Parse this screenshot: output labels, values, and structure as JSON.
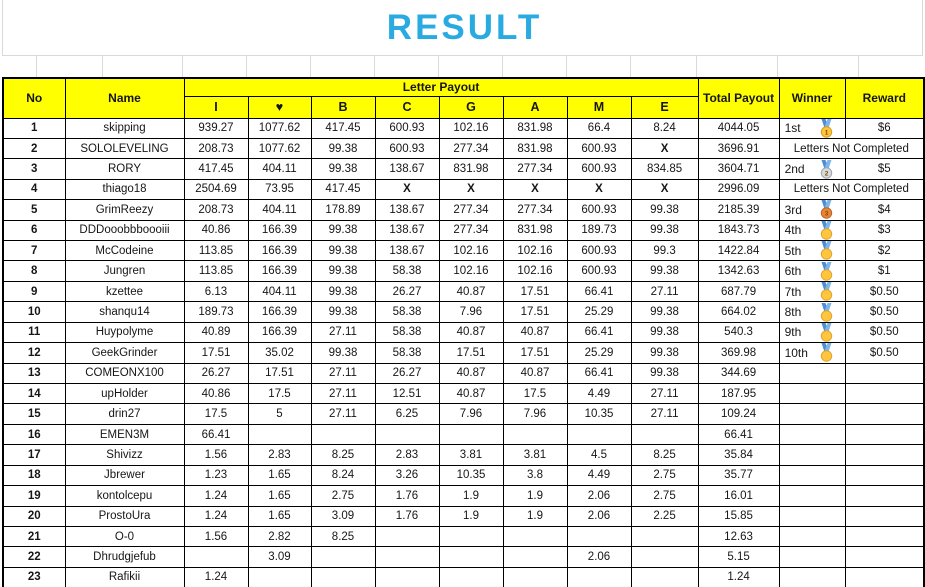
{
  "title": "RESULT",
  "colors": {
    "title_blue": "#29ABE2",
    "header_yellow": "#FFFF00",
    "alert_red": "#FF0000",
    "ribbon_blue": "#4E8FD4",
    "medal_gold": "#FFC53D",
    "medal_silver": "#D6DADE",
    "medal_bronze": "#E8833A"
  },
  "table": {
    "headers": {
      "no": "No",
      "name": "Name",
      "letter_payout": "Letter Payout",
      "total_payout": "Total Payout",
      "winner": "Winner",
      "reward": "Reward"
    },
    "letter_columns": [
      "I",
      "♥",
      "B",
      "C",
      "G",
      "A",
      "M",
      "E"
    ],
    "not_completed_text": "Letters Not Completed",
    "rows": [
      {
        "no": "1",
        "name": "skipping",
        "letters": [
          "939.27",
          "1077.62",
          "417.45",
          "600.93",
          "102.16",
          "831.98",
          "66.4",
          "8.24"
        ],
        "total": "4044.05",
        "winner": {
          "rank": "1st",
          "medal": "gold"
        },
        "reward": "$6"
      },
      {
        "no": "2",
        "name": "SOLOLEVELING",
        "letters": [
          "208.73",
          "1077.62",
          "99.38",
          "600.93",
          "277.34",
          "831.98",
          "600.93",
          "X"
        ],
        "total": "3696.91",
        "status": "not_completed"
      },
      {
        "no": "3",
        "name": "RORY",
        "letters": [
          "417.45",
          "404.11",
          "99.38",
          "138.67",
          "831.98",
          "277.34",
          "600.93",
          "834.85"
        ],
        "total": "3604.71",
        "winner": {
          "rank": "2nd",
          "medal": "silver"
        },
        "reward": "$5"
      },
      {
        "no": "4",
        "name": "thiago18",
        "letters": [
          "2504.69",
          "73.95",
          "417.45",
          "X",
          "X",
          "X",
          "X",
          "X"
        ],
        "total": "2996.09",
        "status": "not_completed"
      },
      {
        "no": "5",
        "name": "GrimReezy",
        "letters": [
          "208.73",
          "404.11",
          "178.89",
          "138.67",
          "277.34",
          "277.34",
          "600.93",
          "99.38"
        ],
        "total": "2185.39",
        "winner": {
          "rank": "3rd",
          "medal": "bronze"
        },
        "reward": "$4"
      },
      {
        "no": "6",
        "name": "DDDooobbboooiii",
        "letters": [
          "40.86",
          "166.39",
          "99.38",
          "138.67",
          "277.34",
          "831.98",
          "189.73",
          "99.38"
        ],
        "total": "1843.73",
        "winner": {
          "rank": "4th",
          "medal": "sport"
        },
        "reward": "$3"
      },
      {
        "no": "7",
        "name": "McCodeine",
        "letters": [
          "113.85",
          "166.39",
          "99.38",
          "138.67",
          "102.16",
          "102.16",
          "600.93",
          "99.3"
        ],
        "total": "1422.84",
        "winner": {
          "rank": "5th",
          "medal": "sport"
        },
        "reward": "$2"
      },
      {
        "no": "8",
        "name": "Jungren",
        "letters": [
          "113.85",
          "166.39",
          "99.38",
          "58.38",
          "102.16",
          "102.16",
          "600.93",
          "99.38"
        ],
        "total": "1342.63",
        "winner": {
          "rank": "6th",
          "medal": "sport"
        },
        "reward": "$1"
      },
      {
        "no": "9",
        "name": "kzettee",
        "letters": [
          "6.13",
          "404.11",
          "99.38",
          "26.27",
          "40.87",
          "17.51",
          "66.41",
          "27.11"
        ],
        "total": "687.79",
        "winner": {
          "rank": "7th",
          "medal": "sport"
        },
        "reward": "$0.50"
      },
      {
        "no": "10",
        "name": "shanqu14",
        "letters": [
          "189.73",
          "166.39",
          "99.38",
          "58.38",
          "7.96",
          "17.51",
          "25.29",
          "99.38"
        ],
        "total": "664.02",
        "winner": {
          "rank": "8th",
          "medal": "sport"
        },
        "reward": "$0.50"
      },
      {
        "no": "11",
        "name": "Huypolyme",
        "letters": [
          "40.89",
          "166.39",
          "27.11",
          "58.38",
          "40.87",
          "40.87",
          "66.41",
          "99.38"
        ],
        "total": "540.3",
        "winner": {
          "rank": "9th",
          "medal": "sport"
        },
        "reward": "$0.50"
      },
      {
        "no": "12",
        "name": "GeekGrinder",
        "letters": [
          "17.51",
          "35.02",
          "99.38",
          "58.38",
          "17.51",
          "17.51",
          "25.29",
          "99.38"
        ],
        "total": "369.98",
        "winner": {
          "rank": "10th",
          "medal": "sport"
        },
        "reward": "$0.50"
      },
      {
        "no": "13",
        "name": "COMEONX100",
        "letters": [
          "26.27",
          "17.51",
          "27.11",
          "26.27",
          "40.87",
          "40.87",
          "66.41",
          "99.38"
        ],
        "total": "344.69"
      },
      {
        "no": "14",
        "name": "upHolder",
        "letters": [
          "40.86",
          "17.5",
          "27.11",
          "12.51",
          "40.87",
          "17.5",
          "4.49",
          "27.11"
        ],
        "total": "187.95"
      },
      {
        "no": "15",
        "name": "drin27",
        "letters": [
          "17.5",
          "5",
          "27.11",
          "6.25",
          "7.96",
          "7.96",
          "10.35",
          "27.11"
        ],
        "total": "109.24"
      },
      {
        "no": "16",
        "name": "EMEN3M",
        "letters": [
          "66.41",
          "",
          "",
          "",
          "",
          "",
          "",
          ""
        ],
        "total": "66.41"
      },
      {
        "no": "17",
        "name": "Shivizz",
        "letters": [
          "1.56",
          "2.83",
          "8.25",
          "2.83",
          "3.81",
          "3.81",
          "4.5",
          "8.25"
        ],
        "total": "35.84"
      },
      {
        "no": "18",
        "name": "Jbrewer",
        "letters": [
          "1.23",
          "1.65",
          "8.24",
          "3.26",
          "10.35",
          "3.8",
          "4.49",
          "2.75"
        ],
        "total": "35.77"
      },
      {
        "no": "19",
        "name": "kontolcepu",
        "letters": [
          "1.24",
          "1.65",
          "2.75",
          "1.76",
          "1.9",
          "1.9",
          "2.06",
          "2.75"
        ],
        "total": "16.01"
      },
      {
        "no": "20",
        "name": "ProstoUra",
        "letters": [
          "1.24",
          "1.65",
          "3.09",
          "1.76",
          "1.9",
          "1.9",
          "2.06",
          "2.25"
        ],
        "total": "15.85"
      },
      {
        "no": "21",
        "name": "O-0",
        "letters": [
          "1.56",
          "2.82",
          "8.25",
          "",
          "",
          "",
          "",
          ""
        ],
        "total": "12.63"
      },
      {
        "no": "22",
        "name": "Dhrudgjefub",
        "letters": [
          "",
          "3.09",
          "",
          "",
          "",
          "",
          "2.06",
          ""
        ],
        "total": "5.15"
      },
      {
        "no": "23",
        "name": "Rafikii",
        "letters": [
          "1.24",
          "",
          "",
          "",
          "",
          "",
          "",
          ""
        ],
        "total": "1.24"
      }
    ]
  }
}
